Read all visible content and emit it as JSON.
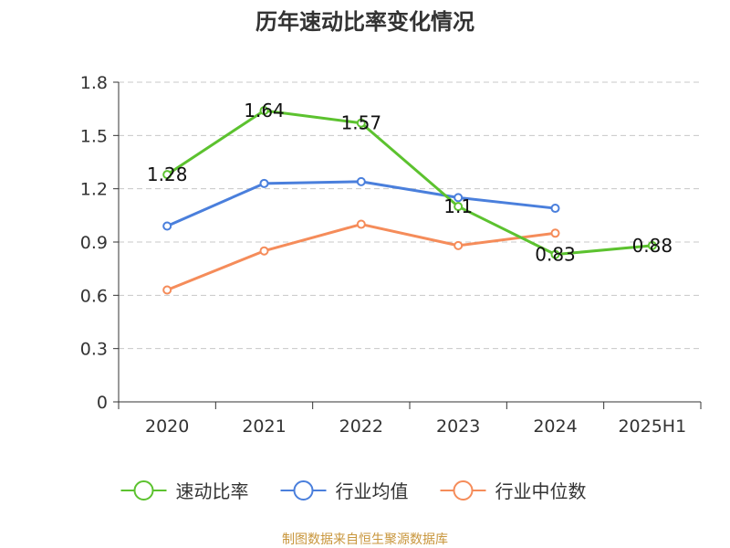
{
  "chart_data": {
    "type": "line",
    "title": "历年速动比率变化情况",
    "categories": [
      "2020",
      "2021",
      "2022",
      "2023",
      "2024",
      "2025H1"
    ],
    "ylim": [
      0,
      1.8
    ],
    "yticks": [
      "0",
      "0.3",
      "0.6",
      "0.9",
      "1.2",
      "1.5",
      "1.8"
    ],
    "grid": true,
    "legend_position": "bottom",
    "series": [
      {
        "name": "速动比率",
        "color": "#5cc22f",
        "values": [
          1.28,
          1.64,
          1.57,
          1.1,
          0.83,
          0.88
        ],
        "labels": [
          "1.28",
          "1.64",
          "1.57",
          "1.1",
          "0.83",
          "0.88"
        ]
      },
      {
        "name": "行业均值",
        "color": "#4a7fdc",
        "values": [
          0.99,
          1.23,
          1.24,
          1.15,
          1.09,
          null
        ]
      },
      {
        "name": "行业中位数",
        "color": "#f58c5a",
        "values": [
          0.63,
          0.85,
          1.0,
          0.88,
          0.95,
          null
        ]
      }
    ]
  },
  "footer": {
    "source": "制图数据来自恒生聚源数据库",
    "source_color": "#c8963c"
  }
}
